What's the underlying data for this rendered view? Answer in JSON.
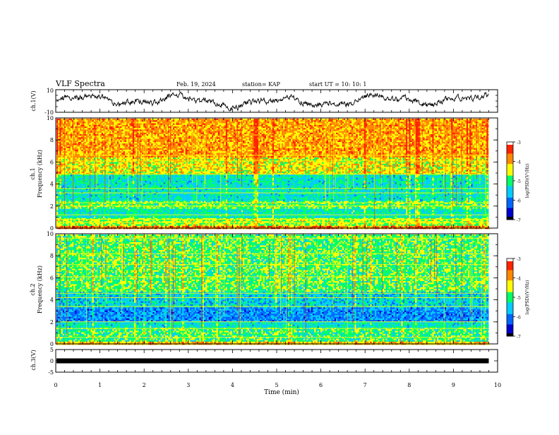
{
  "header": {
    "title": "VLF Spectra",
    "date": "Feb. 19, 2024",
    "station": "station= KAP",
    "start_ut": "start  UT =   10: 10: 1"
  },
  "colors": {
    "colormap": [
      "#000000",
      "#0000cd",
      "#0066ff",
      "#00ccff",
      "#00ff66",
      "#ffff00",
      "#ff8800",
      "#ff2200",
      "#ffffff"
    ],
    "trace": "#000000"
  },
  "chart_data": [
    {
      "type": "line",
      "name": "ch1-waveform",
      "ylabel": "ch.1(V)",
      "ylim": [
        -10,
        10
      ],
      "y_ticklabels": [
        "10",
        "-10"
      ],
      "x_range_min": [
        0,
        9.8
      ],
      "description_values": "continuous waveform fluctuating roughly between -7 and +8 V"
    },
    {
      "type": "heatmap",
      "name": "ch1-spectrogram",
      "ylabel": "ch.1\nFrequency (kHz)",
      "ylim": [
        0,
        10
      ],
      "y_ticklabels": [
        "0",
        "2",
        "4",
        "6",
        "8",
        "10"
      ],
      "x_range_min": [
        0,
        9.8
      ],
      "colorbar": {
        "label": "log(PSD)(V²/Hz)",
        "range": [
          -7,
          -3
        ],
        "ticklabels": [
          "-3",
          "-4",
          "-5",
          "-6",
          "-7"
        ]
      },
      "bands": [
        {
          "from_khz": 0,
          "to_khz": 0.3,
          "level": -3.6
        },
        {
          "from_khz": 0.3,
          "to_khz": 1.0,
          "level": -4.6
        },
        {
          "from_khz": 1.0,
          "to_khz": 1.8,
          "level": -5.3
        },
        {
          "from_khz": 1.8,
          "to_khz": 2.5,
          "level": -4.9
        },
        {
          "from_khz": 2.5,
          "to_khz": 5.0,
          "level": -5.4
        },
        {
          "from_khz": 5.0,
          "to_khz": 6.5,
          "level": -4.3
        },
        {
          "from_khz": 6.5,
          "to_khz": 10.0,
          "level": -3.8
        }
      ],
      "tone_lines_khz": [
        0.5,
        0.8,
        1.2,
        2.0,
        2.3,
        3.2,
        3.6,
        4.9,
        6.1,
        6.6
      ]
    },
    {
      "type": "heatmap",
      "name": "ch2-spectrogram",
      "ylabel": "ch.2\nFrequency (kHz)",
      "ylim": [
        0,
        10
      ],
      "y_ticklabels": [
        "0",
        "2",
        "4",
        "6",
        "8",
        "10"
      ],
      "x_range_min": [
        0,
        9.8
      ],
      "colorbar": {
        "label": "log(PSD)(V²/Hz)",
        "range": [
          -7,
          -3
        ],
        "ticklabels": [
          "-3",
          "-4",
          "-5",
          "-6",
          "-7"
        ]
      },
      "bands": [
        {
          "from_khz": 0,
          "to_khz": 0.3,
          "level": -4.0
        },
        {
          "from_khz": 0.3,
          "to_khz": 1.5,
          "level": -5.0
        },
        {
          "from_khz": 1.5,
          "to_khz": 2.1,
          "level": -5.4
        },
        {
          "from_khz": 2.1,
          "to_khz": 3.4,
          "level": -6.1
        },
        {
          "from_khz": 3.4,
          "to_khz": 4.8,
          "level": -5.6
        },
        {
          "from_khz": 4.8,
          "to_khz": 10.0,
          "level": -4.9
        }
      ],
      "tone_lines_khz": [
        0.6,
        1.4,
        2.0,
        3.4,
        4.2,
        4.6,
        6.1,
        7.2,
        8.2,
        9.6
      ]
    },
    {
      "type": "line",
      "name": "ch3-level",
      "ylabel": "ch.3(V)",
      "ylim": [
        -5,
        5
      ],
      "y_ticklabels": [
        "5",
        "0",
        "-5"
      ],
      "x_range_min": [
        0,
        9.8
      ],
      "constant_value": 0
    }
  ],
  "x_axis": {
    "label": "Time  (min)",
    "ticklabels": [
      "0",
      "1",
      "2",
      "3",
      "4",
      "5",
      "6",
      "7",
      "8",
      "9",
      "10"
    ],
    "range": [
      0,
      10
    ]
  }
}
